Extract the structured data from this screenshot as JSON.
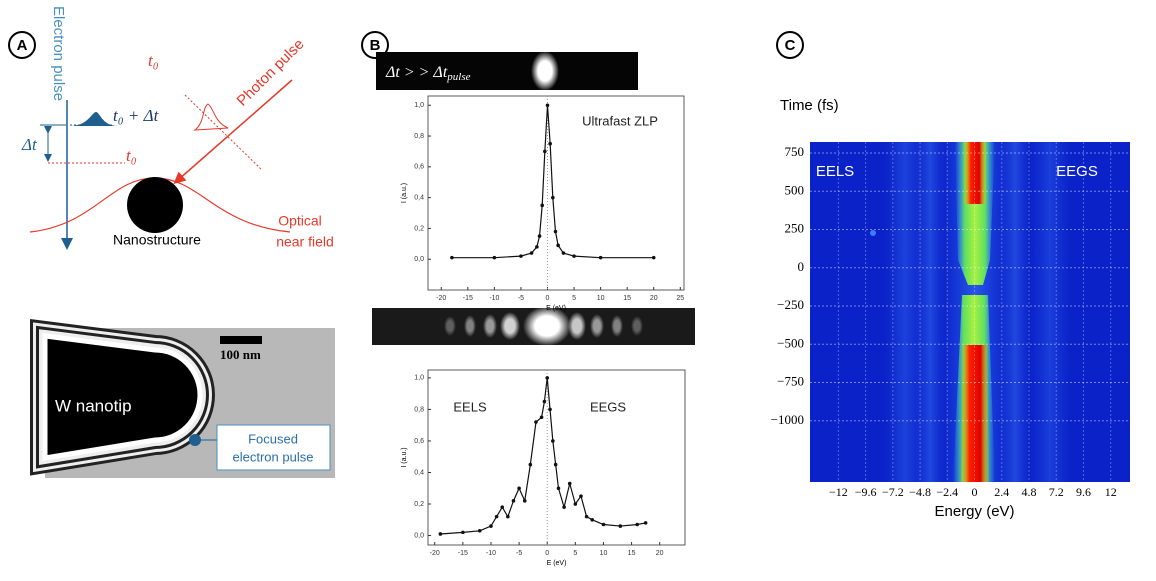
{
  "panel_a": {
    "label": "A",
    "electron_pulse": "Electron pulse",
    "photon_pulse": "Photon pulse",
    "t0_photon": "t₀",
    "t0_plus_dt": "t₀ + Δt",
    "dt": "Δt",
    "t0_electron": "t₀",
    "nanostructure": "Nanostructure",
    "near_field": [
      "Optical",
      "near field"
    ],
    "tip": "W nanotip",
    "scale_bar": "100 nm",
    "focused": [
      "Focused",
      "electron pulse"
    ]
  },
  "panel_b": {
    "label": "B",
    "strip_text": "Δt > > Δt",
    "strip_sub": "pulse"
  },
  "panel_c": {
    "label": "C"
  },
  "chart_data": [
    {
      "type": "line",
      "annotations": [
        "Ultrafast ZLP"
      ],
      "x_label": "E (eV)",
      "y_label": "I (a.u.)",
      "x": [
        -18,
        -10,
        -5,
        -3,
        -2,
        -1.5,
        -1,
        -0.5,
        0,
        0.5,
        1,
        1.5,
        2,
        3,
        5,
        10,
        20
      ],
      "values": [
        0.01,
        0.01,
        0.02,
        0.04,
        0.08,
        0.15,
        0.35,
        0.7,
        1.0,
        0.75,
        0.4,
        0.18,
        0.09,
        0.04,
        0.02,
        0.01,
        0.01
      ],
      "color": "#111111",
      "xlim": [
        -22.5,
        25.7
      ],
      "ylim": [
        -0.2,
        1.06
      ],
      "xticks": [
        -20,
        -15,
        -10,
        -5,
        0,
        5,
        10,
        15,
        20,
        25
      ],
      "yticks": [
        {
          "value": 0,
          "label": "0,0"
        },
        {
          "value": 0.2,
          "label": "0,2"
        },
        {
          "value": 0.4,
          "label": "0,4"
        },
        {
          "value": 0.6,
          "label": "0,6"
        },
        {
          "value": 0.8,
          "label": "0,8"
        },
        {
          "value": 1,
          "label": "1,0"
        }
      ]
    },
    {
      "type": "line",
      "annotations": [
        "EELS",
        "EEGS"
      ],
      "x_label": "E (eV)",
      "y_label": "I (a.u.)",
      "x": [
        -19,
        -15,
        -12,
        -10,
        -9,
        -8,
        -7,
        -6,
        -5,
        -4,
        -3,
        -2,
        -1,
        -0.5,
        0,
        0.5,
        1,
        1.5,
        2,
        3,
        4,
        5,
        6,
        7,
        8,
        10,
        13,
        16,
        17.5
      ],
      "values": [
        0.01,
        0.02,
        0.03,
        0.06,
        0.12,
        0.18,
        0.12,
        0.22,
        0.3,
        0.22,
        0.45,
        0.72,
        0.75,
        0.85,
        1.0,
        0.8,
        0.6,
        0.45,
        0.3,
        0.18,
        0.33,
        0.2,
        0.25,
        0.12,
        0.1,
        0.07,
        0.06,
        0.07,
        0.08
      ],
      "color": "#111111",
      "xlim": [
        -21.2,
        24.5
      ],
      "ylim": [
        -0.06,
        1.05
      ],
      "xticks": [
        -20,
        -15,
        -10,
        -5,
        0,
        5,
        10,
        15,
        20
      ],
      "yticks": [
        {
          "value": 0,
          "label": "0,0"
        },
        {
          "value": 0.2,
          "label": "0,2"
        },
        {
          "value": 0.4,
          "label": "0,4"
        },
        {
          "value": 0.6,
          "label": "0,6"
        },
        {
          "value": 0.8,
          "label": "0,8"
        },
        {
          "value": 1,
          "label": "1,0"
        }
      ]
    },
    {
      "type": "heatmap",
      "annotations": [
        "EELS",
        "EEGS"
      ],
      "x_label": "Energy (eV)",
      "y_label": "Time (fs)",
      "grid": true,
      "xlim": [
        -14.5,
        13.7
      ],
      "ylim": [
        -1400,
        822
      ],
      "xticks": [
        {
          "value": -12,
          "label": "−12"
        },
        {
          "value": -9.6,
          "label": "−9.6"
        },
        {
          "value": -7.2,
          "label": "−7.2"
        },
        {
          "value": -4.8,
          "label": "−4.8"
        },
        {
          "value": -2.4,
          "label": "−2.4"
        },
        0,
        2.4,
        4.8,
        7.2,
        9.6,
        12
      ],
      "yticks": [
        750,
        500,
        250,
        0,
        {
          "value": -250,
          "label": "−250"
        },
        {
          "value": -500,
          "label": "−500"
        },
        {
          "value": -750,
          "label": "−750"
        },
        {
          "value": -1000,
          "label": "−1000"
        }
      ]
    }
  ]
}
